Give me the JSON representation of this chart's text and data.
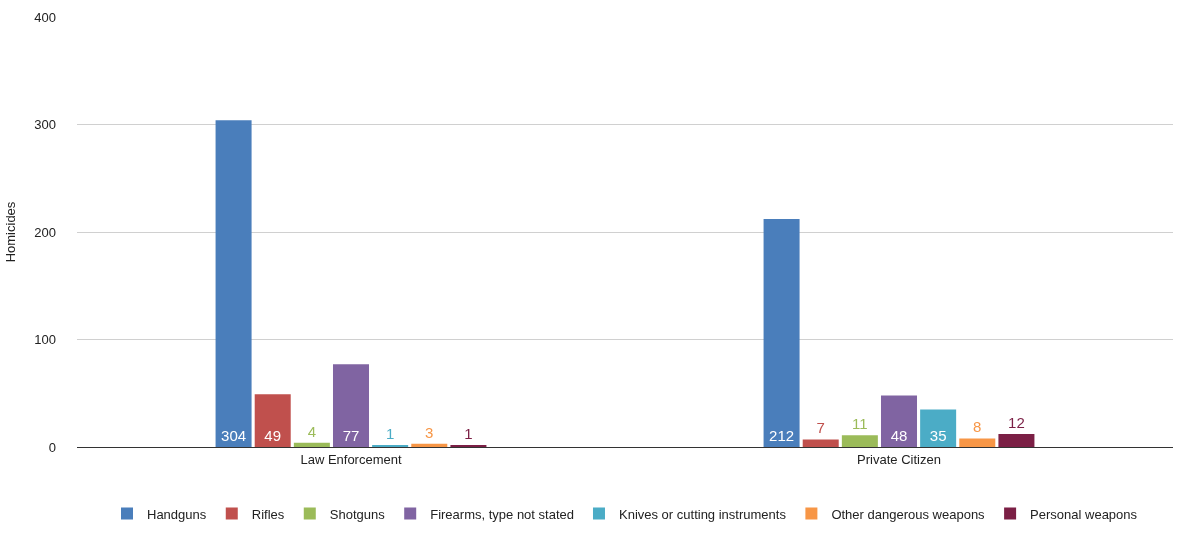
{
  "chart_data": {
    "type": "bar",
    "ylabel": "Homicides",
    "categories": [
      "Law Enforcement",
      "Private Citizen"
    ],
    "series": [
      {
        "name": "Handguns",
        "color": "#4a7ebb",
        "values": [
          304,
          212
        ]
      },
      {
        "name": "Rifles",
        "color": "#c0504d",
        "values": [
          49,
          7
        ]
      },
      {
        "name": "Shotguns",
        "color": "#9bbb59",
        "values": [
          4,
          11
        ]
      },
      {
        "name": "Firearms, type not stated",
        "color": "#8064a2",
        "values": [
          77,
          48
        ]
      },
      {
        "name": "Knives or cutting instruments",
        "color": "#4bacc6",
        "values": [
          1,
          35
        ]
      },
      {
        "name": "Other dangerous weapons",
        "color": "#f79646",
        "values": [
          3,
          8
        ]
      },
      {
        "name": "Personal weapons",
        "color": "#7b1f45",
        "values": [
          1,
          12
        ]
      }
    ],
    "ylim": [
      0,
      400
    ],
    "yticks": [
      0,
      100,
      200,
      300,
      400
    ],
    "grid": "y",
    "legend": "bottom",
    "data_labels": true
  }
}
